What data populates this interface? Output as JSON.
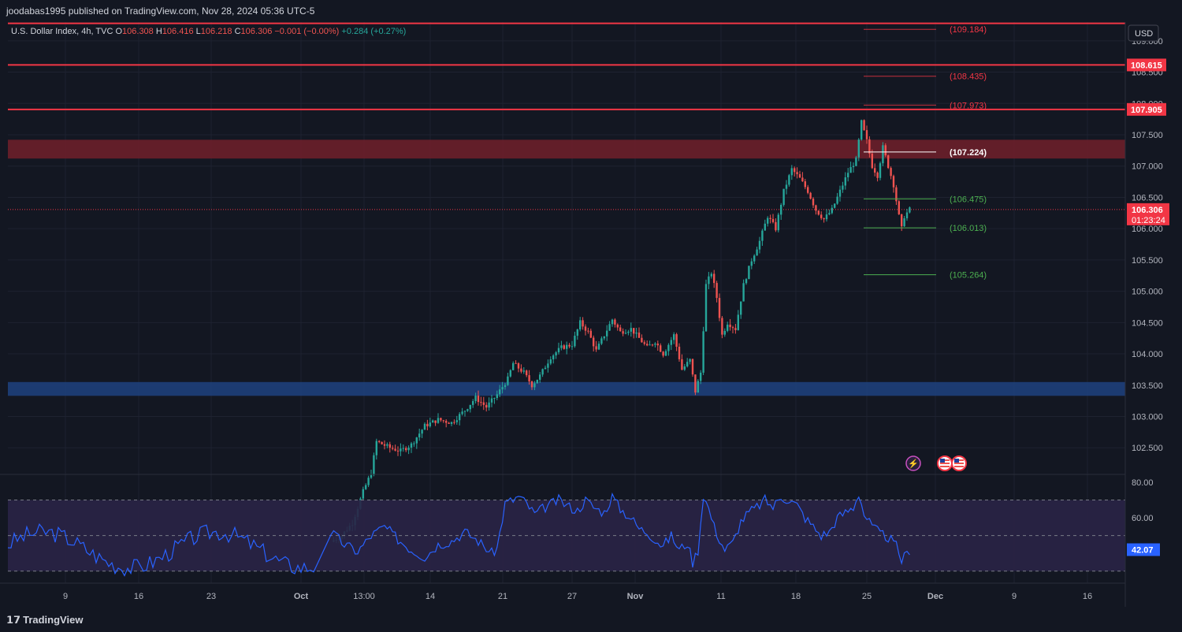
{
  "header": {
    "publisher": "joodabas1995 published on TradingView.com, Nov 28, 2024 05:36 UTC-5"
  },
  "footer": {
    "brand": "TradingView"
  },
  "colors": {
    "background": "#131722",
    "up": "#26a69a",
    "down": "#ef5350",
    "hline": "#f23645",
    "resistance_zone": "#6b1f2a",
    "support_zone": "#1e3f7a",
    "rsi_line": "#2962ff",
    "rsi_band": "#2a2446",
    "text": "#d1d4dc"
  },
  "chart_data": {
    "type": "candlestick",
    "symbol_legend": {
      "name": "U.S. Dollar Index, 4h, TVC",
      "O": "106.308",
      "H": "106.416",
      "L": "106.218",
      "C": "106.306",
      "change": "−0.001 (−0.00%)",
      "secondary_change": "+0.284 (+0.27%)"
    },
    "currency": "USD",
    "price_axis": {
      "range": [
        102.1,
        109.3
      ],
      "ticks": [
        "109.000",
        "108.500",
        "108.000",
        "107.500",
        "107.000",
        "106.500",
        "106.000",
        "105.500",
        "105.000",
        "104.500",
        "104.000",
        "103.500",
        "103.000",
        "102.500"
      ]
    },
    "x_axis": {
      "labels": [
        "9",
        "16",
        "23",
        "Oct",
        "13:00",
        "14",
        "21",
        "27",
        "Nov",
        "11",
        "18",
        "25",
        "Dec",
        "9",
        "16"
      ]
    },
    "current_price": {
      "value": "106.306",
      "countdown": "01:23:24"
    },
    "horizontal_lines": [
      {
        "value": 109.28,
        "label": ""
      },
      {
        "value": 108.615,
        "label": "108.615"
      },
      {
        "value": 107.905,
        "label": "107.905"
      }
    ],
    "zones": [
      {
        "type": "resistance",
        "from": 107.12,
        "to": 107.42
      },
      {
        "type": "support",
        "from": 103.33,
        "to": 103.55
      }
    ],
    "fib_levels": [
      {
        "value": 109.184,
        "label": "(109.184)",
        "color": "#f23645"
      },
      {
        "value": 108.435,
        "label": "(108.435)",
        "color": "#f23645"
      },
      {
        "value": 107.973,
        "label": "(107.973)",
        "color": "#f23645"
      },
      {
        "value": 107.224,
        "label": "(107.224)",
        "color": "#ffffff"
      },
      {
        "value": 106.475,
        "label": "(106.475)",
        "color": "#4caf50"
      },
      {
        "value": 106.013,
        "label": "(106.013)",
        "color": "#4caf50"
      },
      {
        "value": 105.264,
        "label": "(105.264)",
        "color": "#4caf50"
      }
    ],
    "price_path": [
      [
        0,
        101.0
      ],
      [
        4,
        101.1
      ],
      [
        8,
        101.3
      ],
      [
        12,
        101.8
      ],
      [
        15,
        102.1
      ],
      [
        17,
        102.6
      ],
      [
        22,
        102.5
      ],
      [
        26,
        102.45
      ],
      [
        30,
        102.55
      ],
      [
        35,
        102.85
      ],
      [
        40,
        102.95
      ],
      [
        45,
        102.9
      ],
      [
        50,
        103.1
      ],
      [
        54,
        103.3
      ],
      [
        58,
        103.15
      ],
      [
        62,
        103.35
      ],
      [
        66,
        103.6
      ],
      [
        68,
        103.85
      ],
      [
        72,
        103.7
      ],
      [
        75,
        103.5
      ],
      [
        78,
        103.65
      ],
      [
        82,
        103.95
      ],
      [
        86,
        104.1
      ],
      [
        90,
        104.15
      ],
      [
        93,
        104.5
      ],
      [
        96,
        104.35
      ],
      [
        99,
        104.05
      ],
      [
        102,
        104.3
      ],
      [
        105,
        104.55
      ],
      [
        108,
        104.35
      ],
      [
        112,
        104.4
      ],
      [
        115,
        104.25
      ],
      [
        118,
        104.1
      ],
      [
        121,
        104.2
      ],
      [
        124,
        104.0
      ],
      [
        128,
        104.3
      ],
      [
        131,
        103.75
      ],
      [
        134,
        103.9
      ],
      [
        136,
        103.4
      ],
      [
        138,
        103.7
      ],
      [
        140,
        105.1
      ],
      [
        142,
        105.3
      ],
      [
        144,
        104.9
      ],
      [
        146,
        104.3
      ],
      [
        148,
        104.5
      ],
      [
        151,
        104.4
      ],
      [
        154,
        105.1
      ],
      [
        157,
        105.5
      ],
      [
        160,
        105.8
      ],
      [
        163,
        106.2
      ],
      [
        166,
        106.0
      ],
      [
        169,
        106.6
      ],
      [
        172,
        106.95
      ],
      [
        175,
        106.8
      ],
      [
        178,
        106.6
      ],
      [
        181,
        106.3
      ],
      [
        184,
        106.15
      ],
      [
        187,
        106.3
      ],
      [
        190,
        106.6
      ],
      [
        193,
        106.9
      ],
      [
        196,
        107.1
      ],
      [
        198,
        107.7
      ],
      [
        200,
        107.4
      ],
      [
        202,
        107.0
      ],
      [
        204,
        106.85
      ],
      [
        206,
        107.3
      ],
      [
        208,
        107.0
      ],
      [
        210,
        106.7
      ],
      [
        212,
        106.2
      ],
      [
        213,
        106.0
      ],
      [
        214,
        106.2
      ],
      [
        216,
        106.306
      ]
    ],
    "rsi": {
      "levels": {
        "upper": 70,
        "middle": 50,
        "lower": 30
      },
      "ticks": [
        "80.00",
        "60.00"
      ],
      "current": "42.07",
      "values": [
        [
          0,
          52
        ],
        [
          5,
          45
        ],
        [
          10,
          41
        ],
        [
          15,
          50
        ],
        [
          20,
          55
        ],
        [
          25,
          48
        ],
        [
          30,
          42
        ],
        [
          35,
          38
        ],
        [
          40,
          45
        ],
        [
          45,
          47
        ],
        [
          50,
          52
        ],
        [
          55,
          47
        ],
        [
          60,
          40
        ],
        [
          62,
          43
        ],
        [
          65,
          68
        ],
        [
          68,
          70
        ],
        [
          70,
          72
        ],
        [
          73,
          68
        ],
        [
          76,
          62
        ],
        [
          80,
          66
        ],
        [
          85,
          70
        ],
        [
          88,
          67
        ],
        [
          92,
          64
        ],
        [
          95,
          70
        ],
        [
          98,
          66
        ],
        [
          102,
          63
        ],
        [
          105,
          72
        ],
        [
          108,
          65
        ],
        [
          112,
          60
        ],
        [
          115,
          54
        ],
        [
          118,
          52
        ],
        [
          121,
          48
        ],
        [
          124,
          44
        ],
        [
          127,
          50
        ],
        [
          130,
          42
        ],
        [
          133,
          46
        ],
        [
          135,
          35
        ],
        [
          137,
          42
        ],
        [
          139,
          73
        ],
        [
          141,
          65
        ],
        [
          143,
          55
        ],
        [
          145,
          48
        ],
        [
          147,
          42
        ],
        [
          150,
          46
        ],
        [
          153,
          58
        ],
        [
          156,
          63
        ],
        [
          159,
          66
        ],
        [
          162,
          70
        ],
        [
          165,
          66
        ],
        [
          168,
          72
        ],
        [
          171,
          70
        ],
        [
          174,
          67
        ],
        [
          177,
          60
        ],
        [
          180,
          55
        ],
        [
          183,
          50
        ],
        [
          186,
          52
        ],
        [
          189,
          60
        ],
        [
          192,
          63
        ],
        [
          195,
          66
        ],
        [
          197,
          74
        ],
        [
          199,
          62
        ],
        [
          202,
          55
        ],
        [
          205,
          51
        ],
        [
          208,
          49
        ],
        [
          211,
          44
        ],
        [
          213,
          36
        ],
        [
          214,
          38
        ],
        [
          216,
          42
        ]
      ]
    }
  },
  "event_icons": [
    "lightning-icon",
    "us-flag-icon",
    "us-flag-icon"
  ]
}
